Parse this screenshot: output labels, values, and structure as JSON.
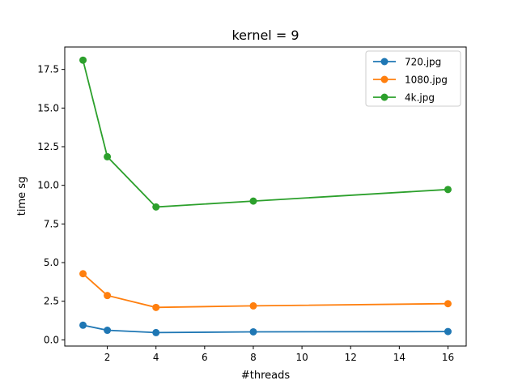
{
  "chart_data": {
    "type": "line",
    "title": "kernel = 9",
    "xlabel": "#threads",
    "ylabel": "time sg",
    "xlim": [
      0.25,
      16.75
    ],
    "ylim": [
      -0.4,
      18.95
    ],
    "xticks": [
      2,
      4,
      6,
      8,
      10,
      12,
      14,
      16
    ],
    "yticks": [
      0.0,
      2.5,
      5.0,
      7.5,
      10.0,
      12.5,
      15.0,
      17.5
    ],
    "xtick_labels": [
      "2",
      "4",
      "6",
      "8",
      "10",
      "12",
      "14",
      "16"
    ],
    "ytick_labels": [
      "0.0",
      "2.5",
      "5.0",
      "7.5",
      "10.0",
      "12.5",
      "15.0",
      "17.5"
    ],
    "grid": false,
    "legend_position": "top-right",
    "x": [
      1,
      2,
      4,
      8,
      16
    ],
    "series": [
      {
        "name": "720.jpg",
        "color": "#1f77b4",
        "values": [
          0.95,
          0.62,
          0.47,
          0.52,
          0.54
        ]
      },
      {
        "name": "1080.jpg",
        "color": "#ff7f0e",
        "values": [
          4.28,
          2.87,
          2.1,
          2.2,
          2.34
        ]
      },
      {
        "name": "4k.jpg",
        "color": "#2ca02c",
        "values": [
          18.1,
          11.85,
          8.6,
          8.98,
          9.73
        ]
      }
    ]
  }
}
